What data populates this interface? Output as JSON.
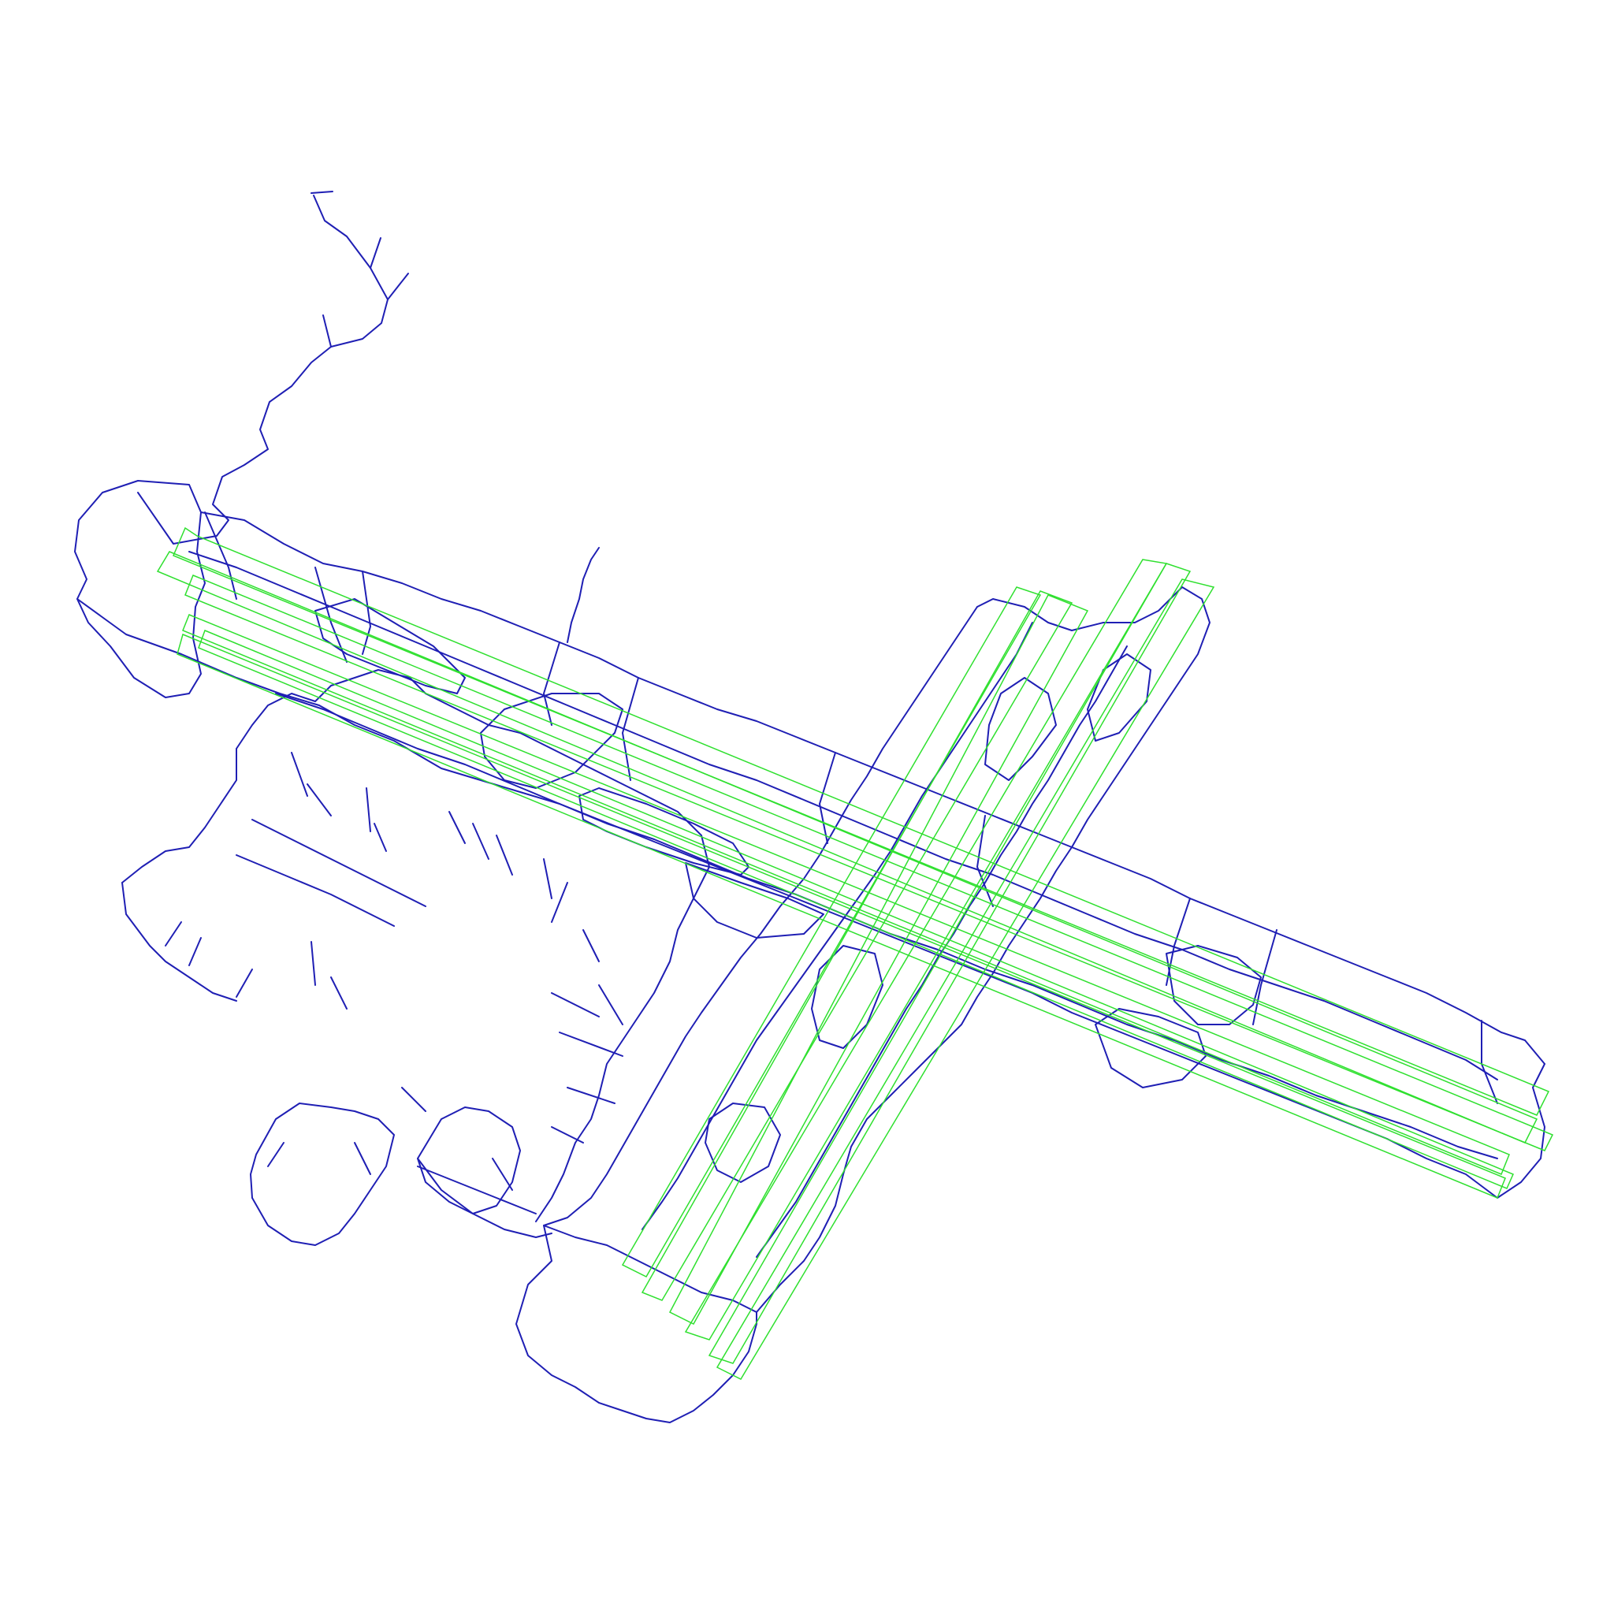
{
  "map": {
    "background": "#ffffff",
    "network_color": "#1f1fb4",
    "runway_color": "#2fe02f",
    "layers": [
      "road-network",
      "runway-lanes"
    ]
  }
}
